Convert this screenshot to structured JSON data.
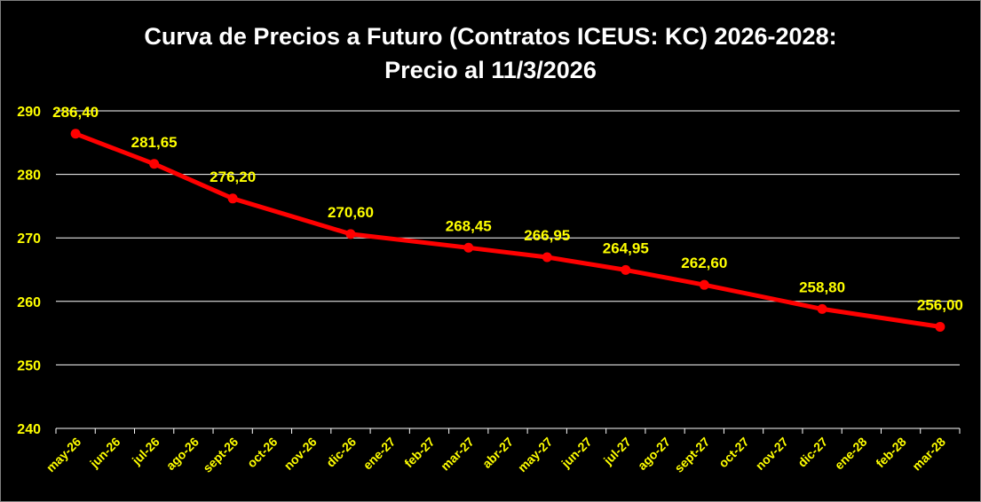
{
  "chart_data": {
    "type": "line",
    "title_line1": "Curva de Precios a Futuro  (Contratos ICEUS: KC) 2026-2028:",
    "title_line2": "Precio al 11/3/2026",
    "categories": [
      "may-26",
      "jun-26",
      "jul-26",
      "ago-26",
      "sept-26",
      "oct-26",
      "nov-26",
      "dic-26",
      "ene-27",
      "feb-27",
      "mar-27",
      "abr-27",
      "may-27",
      "jun-27",
      "jul-27",
      "ago-27",
      "sept-27",
      "oct-27",
      "nov-27",
      "dic-27",
      "ene-28",
      "feb-28",
      "mar-28"
    ],
    "series": [
      {
        "color": "#ff0000",
        "points": [
          {
            "x": "may-26",
            "y": 286.4,
            "label": "286,40"
          },
          {
            "x": "jul-26",
            "y": 281.65,
            "label": "281,65"
          },
          {
            "x": "sept-26",
            "y": 276.2,
            "label": "276,20"
          },
          {
            "x": "dic-26",
            "y": 270.6,
            "label": "270,60"
          },
          {
            "x": "mar-27",
            "y": 268.45,
            "label": "268,45"
          },
          {
            "x": "may-27",
            "y": 266.95,
            "label": "266,95"
          },
          {
            "x": "jul-27",
            "y": 264.95,
            "label": "264,95"
          },
          {
            "x": "sept-27",
            "y": 262.6,
            "label": "262,60"
          },
          {
            "x": "dic-27",
            "y": 258.8,
            "label": "258,80"
          },
          {
            "x": "mar-28",
            "y": 256.0,
            "label": "256,00"
          }
        ]
      }
    ],
    "yticks": [
      "240",
      "250",
      "260",
      "270",
      "280",
      "290"
    ],
    "ylim": [
      240,
      290
    ],
    "grid": true,
    "legend": "none",
    "background": "#000000",
    "text_color": "#ffff00",
    "title_color": "#ffffff",
    "grid_color": "#ffffff"
  }
}
